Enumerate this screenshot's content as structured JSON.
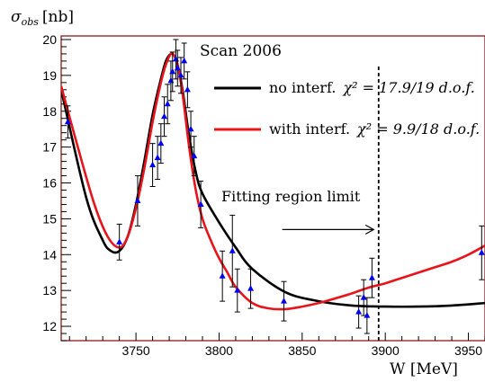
{
  "chart_data": {
    "type": "scatter",
    "title": "Scan 2006",
    "ylabel_main": "σ",
    "ylabel_sub": "obs",
    "ylabel_unit": "[nb]",
    "xlabel": "W [MeV]",
    "xlim": [
      3705,
      3960
    ],
    "ylim": [
      11.6,
      20.1
    ],
    "x_ticks": [
      3750,
      3800,
      3850,
      3900,
      3950
    ],
    "y_ticks": [
      12,
      13,
      14,
      15,
      16,
      17,
      18,
      19,
      20
    ],
    "grid": false,
    "legend_position": "top-right",
    "series": [
      {
        "name": "no interf.",
        "chi2_label": "χ² = 17.9/19 d.o.f.",
        "color": "#000000",
        "type": "line",
        "x": [
          3705,
          3720,
          3730,
          3735,
          3740,
          3745,
          3750,
          3755,
          3760,
          3765,
          3768,
          3771,
          3773,
          3775,
          3778,
          3782,
          3786,
          3790,
          3800,
          3810,
          3820,
          3840,
          3860,
          3880,
          3900,
          3920,
          3940,
          3960
        ],
        "values": [
          18.6,
          15.6,
          14.4,
          14.1,
          14.1,
          14.5,
          15.4,
          16.6,
          17.9,
          18.9,
          19.4,
          19.6,
          19.55,
          19.3,
          18.6,
          17.3,
          16.3,
          15.7,
          14.9,
          14.2,
          13.6,
          12.95,
          12.7,
          12.58,
          12.55,
          12.55,
          12.58,
          12.65
        ]
      },
      {
        "name": "with interf.",
        "chi2_label": "χ² = 9.9/18 d.o.f.",
        "color": "#e8141b",
        "type": "line",
        "x": [
          3705,
          3715,
          3725,
          3733,
          3740,
          3745,
          3750,
          3755,
          3760,
          3765,
          3768,
          3771,
          3773,
          3775,
          3778,
          3782,
          3786,
          3790,
          3795,
          3800,
          3805,
          3810,
          3820,
          3830,
          3840,
          3850,
          3860,
          3870,
          3880,
          3890,
          3900,
          3910,
          3920,
          3930,
          3940,
          3950,
          3960
        ],
        "values": [
          18.7,
          17.0,
          15.4,
          14.5,
          14.2,
          14.5,
          15.3,
          16.4,
          17.7,
          18.8,
          19.3,
          19.6,
          19.55,
          19.3,
          18.5,
          17.0,
          15.8,
          15.0,
          14.4,
          13.9,
          13.5,
          13.1,
          12.65,
          12.5,
          12.48,
          12.55,
          12.65,
          12.78,
          12.92,
          13.08,
          13.2,
          13.35,
          13.5,
          13.65,
          13.8,
          14.0,
          14.25
        ]
      },
      {
        "name": "data",
        "color": "#0000ee",
        "type": "scatter",
        "x": [
          3709,
          3740,
          3751,
          3760,
          3763,
          3765,
          3767,
          3769,
          3771,
          3772,
          3774,
          3775,
          3777,
          3779,
          3781,
          3783,
          3785,
          3789,
          3802,
          3808,
          3811,
          3819,
          3839,
          3884,
          3887,
          3889,
          3892,
          3958
        ],
        "values": [
          17.7,
          14.35,
          15.5,
          16.5,
          16.7,
          17.1,
          17.85,
          18.2,
          18.85,
          19.1,
          19.45,
          19.2,
          19.0,
          19.4,
          18.6,
          17.5,
          16.75,
          15.4,
          13.4,
          14.1,
          13.0,
          13.05,
          12.7,
          12.4,
          12.8,
          12.3,
          13.35,
          14.05
        ],
        "y_err": [
          0.45,
          0.5,
          0.7,
          0.6,
          0.6,
          0.55,
          0.55,
          0.55,
          0.55,
          0.55,
          0.55,
          0.5,
          0.5,
          0.5,
          0.5,
          0.5,
          0.55,
          0.65,
          0.7,
          1.0,
          0.6,
          0.55,
          0.55,
          0.45,
          0.5,
          0.5,
          0.55,
          0.75
        ]
      }
    ],
    "annotations": [
      {
        "text": "Fitting region limit",
        "type": "vertical-dashed-line",
        "x": 3896,
        "arrow_from_x": 3838,
        "arrow_to_x": 3893,
        "arrow_y": 14.7
      }
    ]
  }
}
